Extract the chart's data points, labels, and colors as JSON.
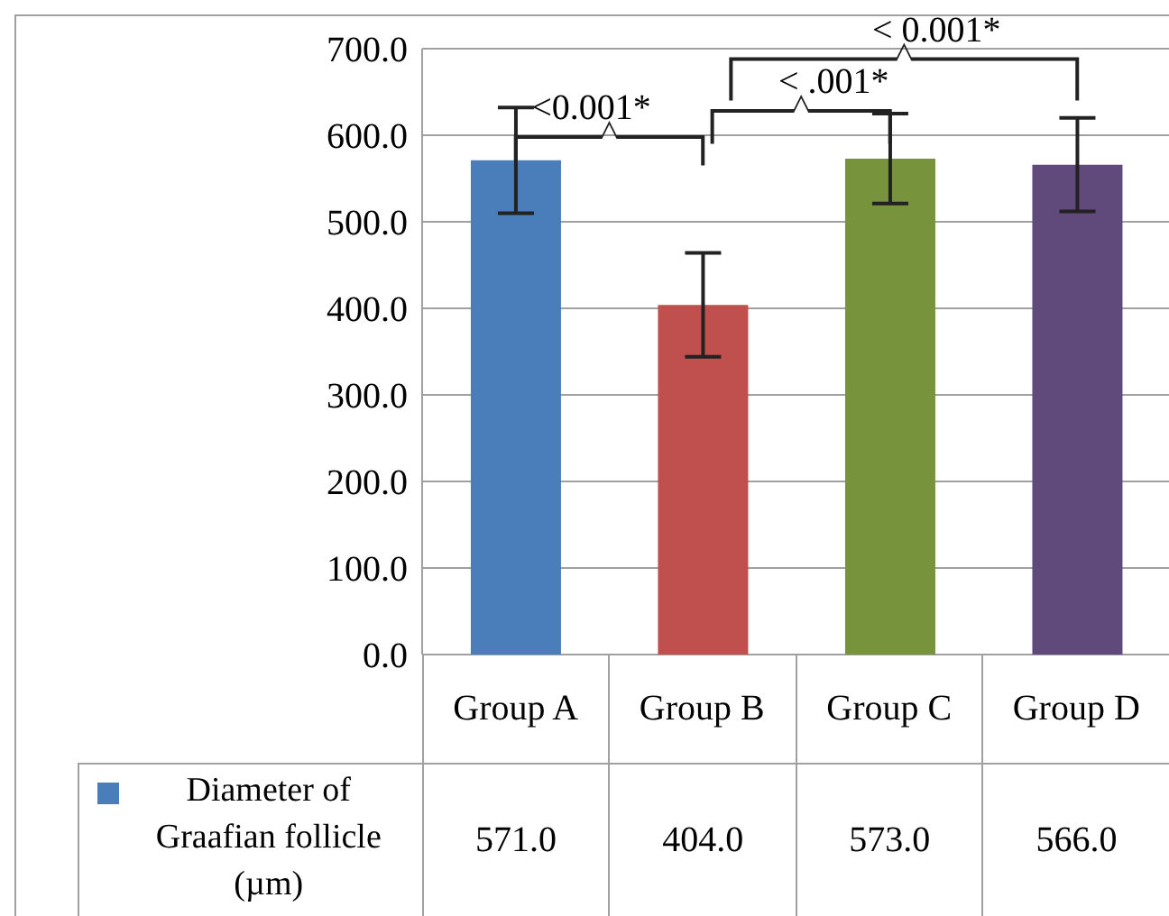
{
  "chart_data": {
    "type": "bar",
    "categories": [
      "Group A",
      "Group B",
      "Group C",
      "Group D"
    ],
    "series": [
      {
        "name": "Diameter of Graafian follicle (µm)",
        "colors": [
          "#4a7ebb",
          "#c0504d",
          "#77933c",
          "#604a7b"
        ],
        "values": [
          571.0,
          404.0,
          573.0,
          566.0
        ],
        "errors": [
          61,
          60,
          52,
          54
        ]
      }
    ],
    "value_labels": [
      "571.0",
      "404.0",
      "573.0",
      "566.0"
    ],
    "ylim": [
      0,
      700
    ],
    "yticks": [
      {
        "value": 0,
        "label": "0.0"
      },
      {
        "value": 100,
        "label": "100.0"
      },
      {
        "value": 200,
        "label": "200.0"
      },
      {
        "value": 300,
        "label": "300.0"
      },
      {
        "value": 400,
        "label": "400.0"
      },
      {
        "value": 500,
        "label": "500.0"
      },
      {
        "value": 600,
        "label": "600.0"
      },
      {
        "value": 700,
        "label": "700.0"
      }
    ],
    "grid": "y",
    "legend": "bottom",
    "annotations": [
      "<0.001*",
      "< .001*",
      "< 0.001*"
    ]
  }
}
